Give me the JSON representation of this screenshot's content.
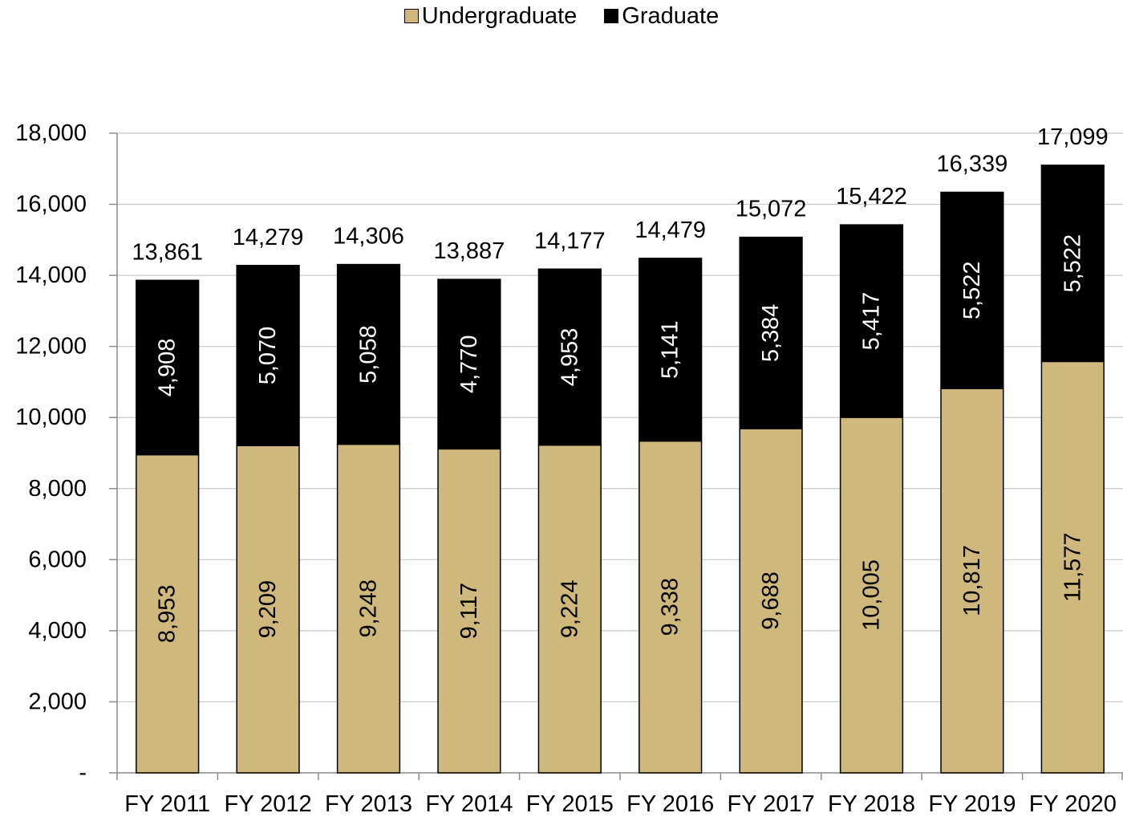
{
  "chart_data": {
    "type": "bar",
    "stacked": true,
    "categories": [
      "FY 2011",
      "FY 2012",
      "FY 2013",
      "FY 2014",
      "FY 2015",
      "FY 2016",
      "FY 2017",
      "FY 2018",
      "FY 2019",
      "FY 2020"
    ],
    "series": [
      {
        "name": "Undergraduate",
        "color": "#cfb87c",
        "values": [
          8953,
          9209,
          9248,
          9117,
          9224,
          9338,
          9688,
          10005,
          10817,
          11577
        ],
        "labels": [
          "8,953",
          "9,209",
          "9,248",
          "9,117",
          "9,224",
          "9,338",
          "9,688",
          "10,005",
          "10,817",
          "11,577"
        ]
      },
      {
        "name": "Graduate",
        "color": "#000000",
        "values": [
          4908,
          5070,
          5058,
          4770,
          4953,
          5141,
          5384,
          5417,
          5522,
          5522
        ],
        "labels": [
          "4,908",
          "5,070",
          "5,058",
          "4,770",
          "4,953",
          "5,141",
          "5,384",
          "5,417",
          "5,522",
          "5,522"
        ]
      }
    ],
    "totals": [
      13861,
      14279,
      14306,
      13887,
      14177,
      14479,
      15072,
      15422,
      16339,
      17099
    ],
    "total_labels": [
      "13,861",
      "14,279",
      "14,306",
      "13,887",
      "14,177",
      "14,479",
      "15,072",
      "15,422",
      "16,339",
      "17,099"
    ],
    "ylim": [
      0,
      18000
    ],
    "yticks": [
      0,
      2000,
      4000,
      6000,
      8000,
      10000,
      12000,
      14000,
      16000,
      18000
    ],
    "ytick_labels": [
      "-",
      "2,000",
      "4,000",
      "6,000",
      "8,000",
      "10,000",
      "12,000",
      "14,000",
      "16,000",
      "18,000"
    ],
    "grid": true,
    "legend_position": "top-center",
    "title": "",
    "xlabel": "",
    "ylabel": ""
  }
}
